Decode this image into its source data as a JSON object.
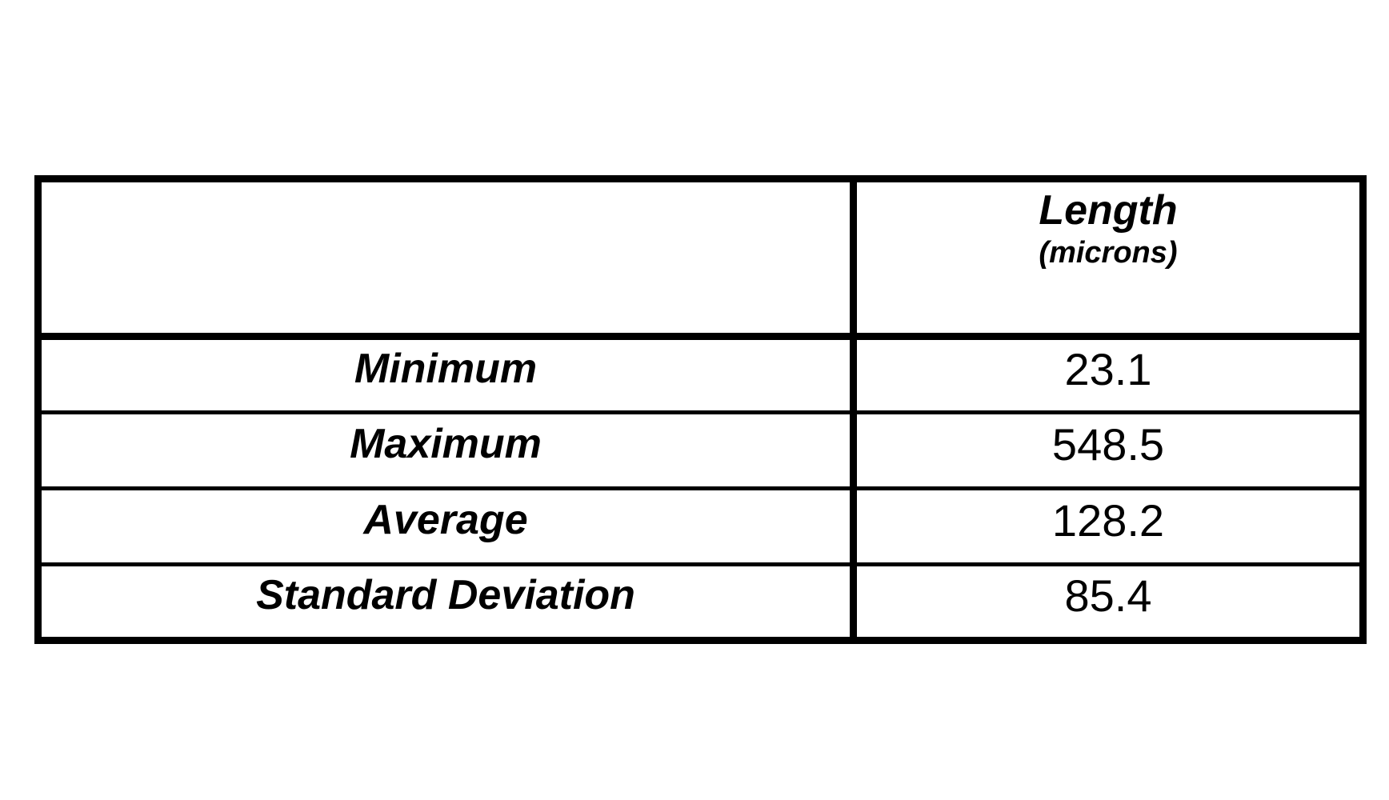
{
  "table": {
    "header": {
      "corner": "",
      "col_title": "Length",
      "col_subtitle": "(microns)"
    },
    "rows": [
      {
        "label": "Minimum",
        "value": "23.1"
      },
      {
        "label": "Maximum",
        "value": "548.5"
      },
      {
        "label": "Average",
        "value": "128.2"
      },
      {
        "label": "Standard Deviation",
        "value": "85.4"
      }
    ]
  },
  "chart_data": {
    "type": "table",
    "columns": [
      "",
      "Length (microns)"
    ],
    "rows": [
      [
        "Minimum",
        23.1
      ],
      [
        "Maximum",
        548.5
      ],
      [
        "Average",
        128.2
      ],
      [
        "Standard Deviation",
        85.4
      ]
    ],
    "title": "",
    "units": "microns"
  },
  "colors": {
    "border": "#000000",
    "background": "#ffffff",
    "text": "#000000"
  }
}
